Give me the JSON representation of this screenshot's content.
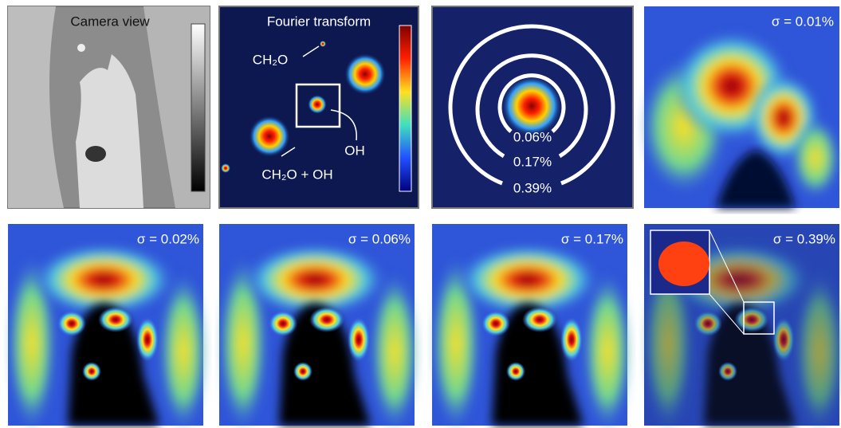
{
  "panels": [
    {
      "title": "Camera view"
    },
    {
      "title": "Fourier transform",
      "annotations": [
        "CH₂O",
        "OH",
        "CH₂O + OH"
      ]
    },
    {
      "ring_labels": [
        "0.06%",
        "0.17%",
        "0.39%"
      ]
    },
    {
      "sigma": "σ = 0.01%"
    },
    {
      "sigma": "σ = 0.02%"
    },
    {
      "sigma": "σ = 0.06%"
    },
    {
      "sigma": "σ = 0.17%"
    },
    {
      "sigma": "σ = 0.39%"
    }
  ]
}
